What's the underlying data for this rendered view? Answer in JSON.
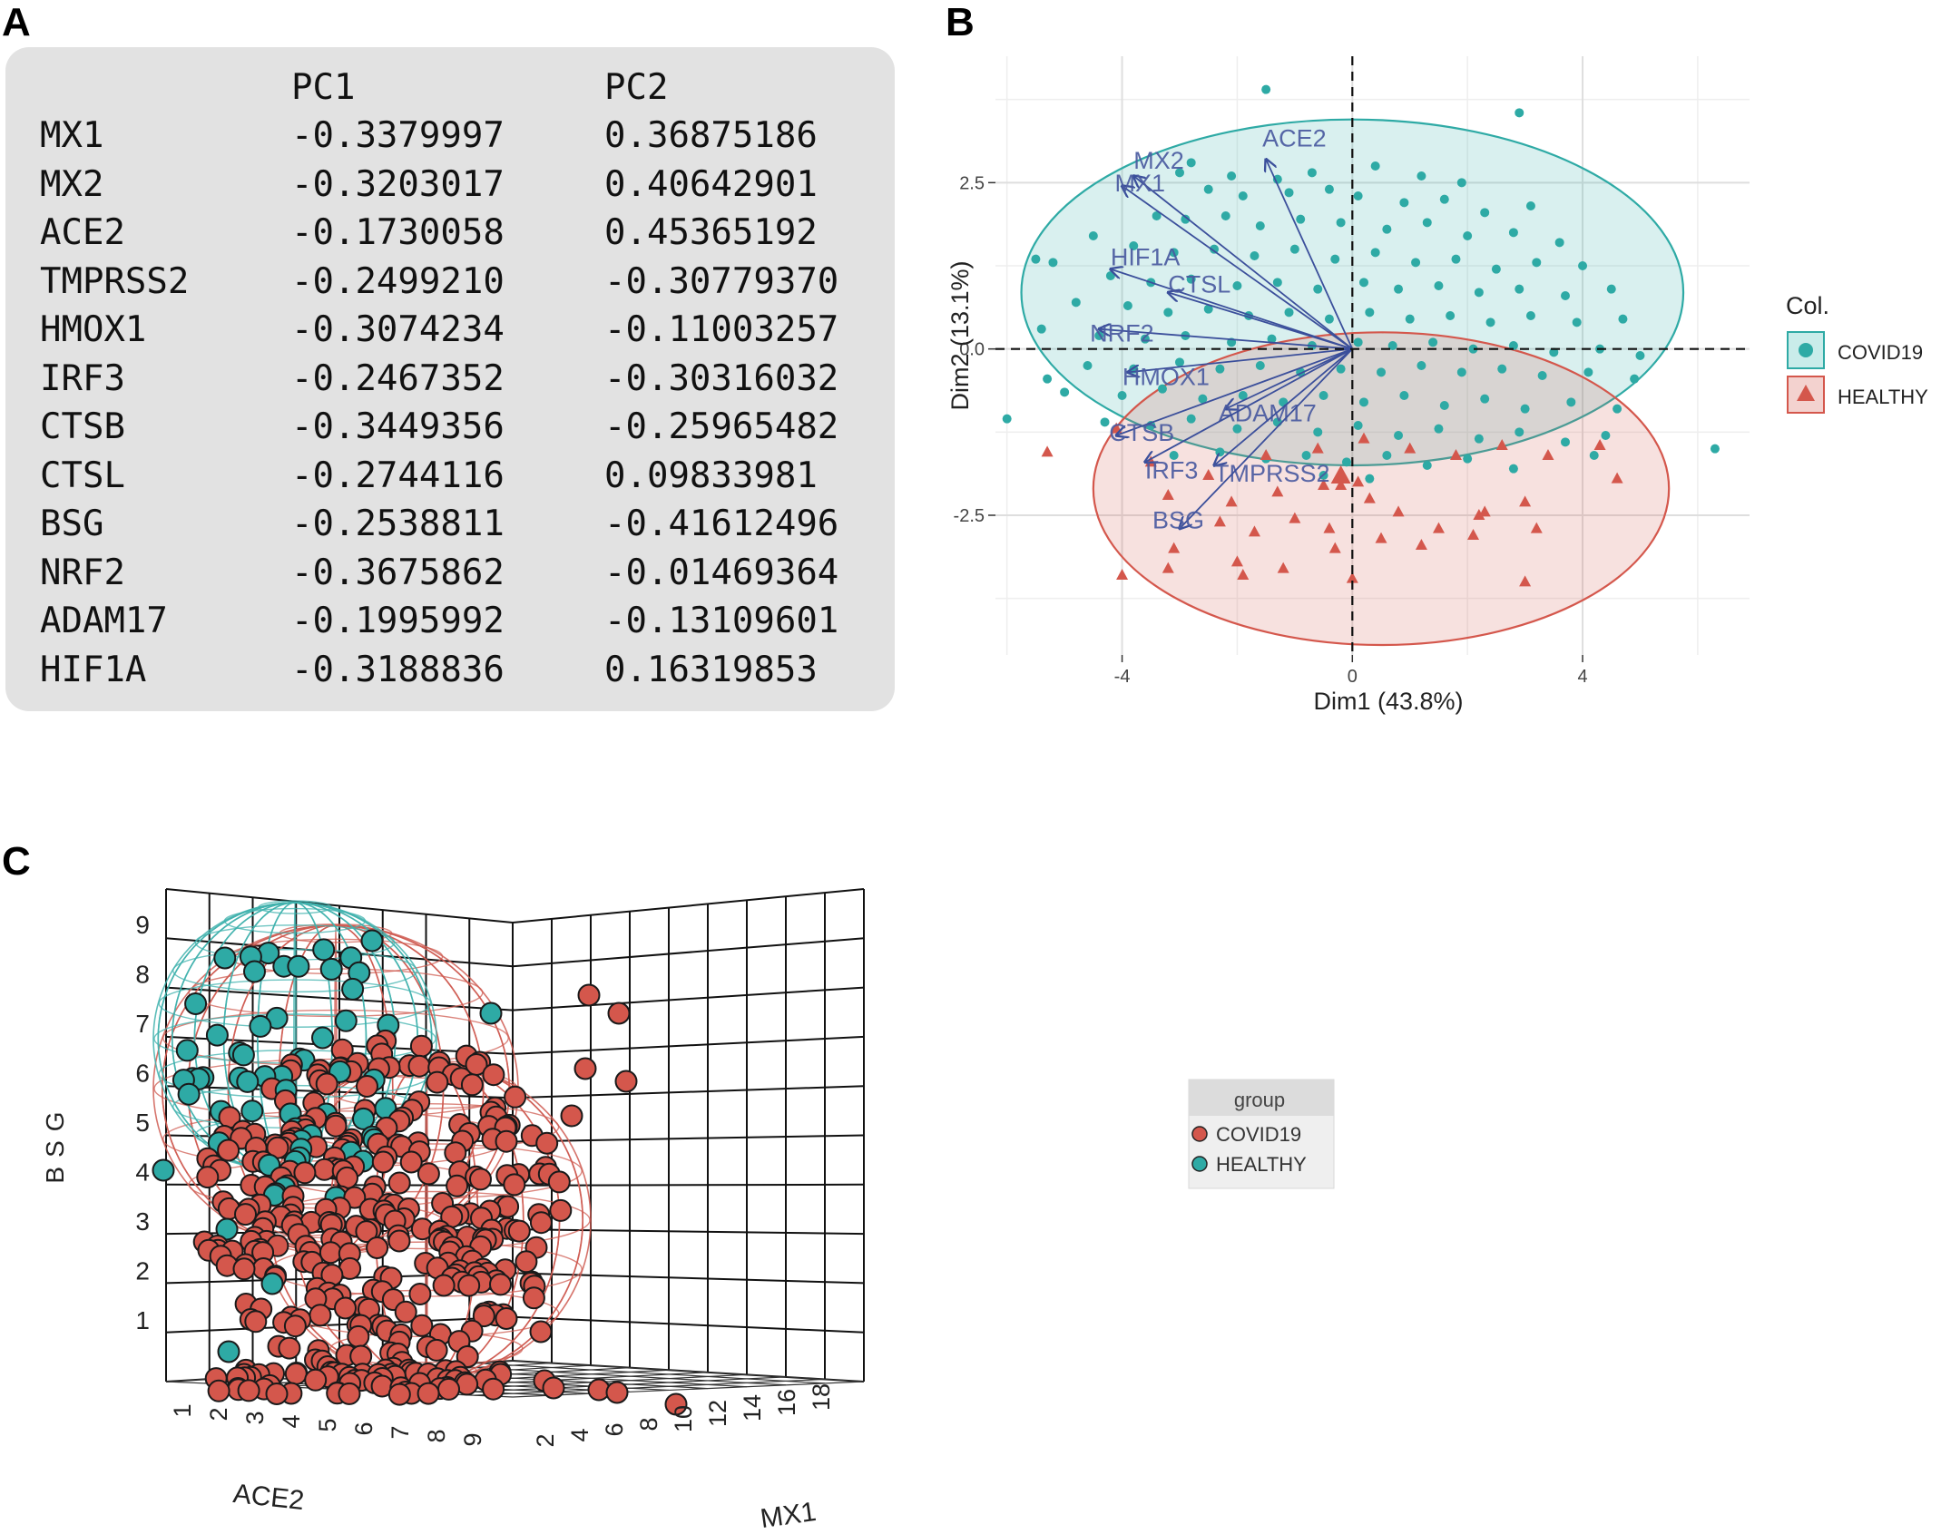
{
  "panels": {
    "a": "A",
    "b": "B",
    "c": "C"
  },
  "loadings_table": {
    "columns": [
      "PC1",
      "PC2"
    ],
    "rows": [
      {
        "gene": "MX1",
        "pc1": "-0.3379997",
        "pc2": "0.36875186"
      },
      {
        "gene": "MX2",
        "pc1": "-0.3203017",
        "pc2": "0.40642901"
      },
      {
        "gene": "ACE2",
        "pc1": "-0.1730058",
        "pc2": "0.45365192"
      },
      {
        "gene": "TMPRSS2",
        "pc1": "-0.2499210",
        "pc2": "-0.30779370"
      },
      {
        "gene": "HMOX1",
        "pc1": "-0.3074234",
        "pc2": "-0.11003257"
      },
      {
        "gene": "IRF3",
        "pc1": "-0.2467352",
        "pc2": "-0.30316032"
      },
      {
        "gene": "CTSB",
        "pc1": "-0.3449356",
        "pc2": "-0.25965482"
      },
      {
        "gene": "CTSL",
        "pc1": "-0.2744116",
        "pc2": "0.09833981"
      },
      {
        "gene": "BSG",
        "pc1": "-0.2538811",
        "pc2": "-0.41612496"
      },
      {
        "gene": "NRF2",
        "pc1": "-0.3675862",
        "pc2": "-0.01469364"
      },
      {
        "gene": "ADAM17",
        "pc1": "-0.1995992",
        "pc2": "-0.13109601"
      },
      {
        "gene": "HIF1A",
        "pc1": "-0.3188836",
        "pc2": "0.16319853"
      }
    ]
  },
  "chart_data": [
    {
      "type": "scatter",
      "title": "",
      "xlabel": "Dim1 (43.8%)",
      "ylabel": "Dim2 (13.1%)",
      "xlim": [
        -6.2,
        6.9
      ],
      "ylim": [
        -4.6,
        4.4
      ],
      "xticks": [
        -4,
        0,
        4
      ],
      "xtick_labels": [
        "-4",
        "0",
        "4"
      ],
      "yticks": [
        -2.5,
        0,
        2.5
      ],
      "ytick_labels": [
        "-2.5",
        "0.0",
        "2.5"
      ],
      "grid": true,
      "legend": {
        "title": "Col.",
        "position": "right",
        "entries": [
          "COVID19",
          "HEALTHY"
        ]
      },
      "colors": {
        "COVID19": "#2eaaa5",
        "HEALTHY": "#d4574c",
        "arrows": "#3b4f9b"
      },
      "arrows": [
        {
          "label": "MX2",
          "x": -3.8,
          "y": 2.6
        },
        {
          "label": "MX1",
          "x": -4.0,
          "y": 2.45
        },
        {
          "label": "ACE2",
          "x": -1.5,
          "y": 2.85
        },
        {
          "label": "HIF1A",
          "x": -4.2,
          "y": 1.2
        },
        {
          "label": "CTSL",
          "x": -3.2,
          "y": 0.85
        },
        {
          "label": "NRF2",
          "x": -4.4,
          "y": 0.3
        },
        {
          "label": "HMOX1",
          "x": -3.9,
          "y": -0.35
        },
        {
          "label": "ADAM17",
          "x": -2.2,
          "y": -0.9
        },
        {
          "label": "CTSB",
          "x": -4.1,
          "y": -1.3
        },
        {
          "label": "IRF3",
          "x": -3.6,
          "y": -1.7
        },
        {
          "label": "TMPRSS2",
          "x": -2.4,
          "y": -1.75
        },
        {
          "label": "BSG",
          "x": -3.0,
          "y": -2.7
        }
      ],
      "ellipses": [
        {
          "group": "COVID19",
          "cx": 0.0,
          "cy": 0.85,
          "rx": 5.75,
          "ry": 2.6
        },
        {
          "group": "HEALTHY",
          "cx": 0.5,
          "cy": -2.1,
          "rx": 5.0,
          "ry": 2.35
        }
      ],
      "series": [
        {
          "name": "COVID19",
          "marker": "circle",
          "points": [
            [
              -1.5,
              3.9
            ],
            [
              2.9,
              3.55
            ],
            [
              -3.0,
              2.65
            ],
            [
              -2.8,
              2.8
            ],
            [
              -2.1,
              2.6
            ],
            [
              -1.3,
              2.55
            ],
            [
              -0.7,
              2.65
            ],
            [
              0.4,
              2.75
            ],
            [
              1.2,
              2.6
            ],
            [
              1.9,
              2.5
            ],
            [
              -2.5,
              2.4
            ],
            [
              -1.9,
              2.3
            ],
            [
              -1.1,
              2.35
            ],
            [
              -0.4,
              2.4
            ],
            [
              0.1,
              2.3
            ],
            [
              0.9,
              2.2
            ],
            [
              1.6,
              2.25
            ],
            [
              2.3,
              2.05
            ],
            [
              3.1,
              2.15
            ],
            [
              -3.4,
              2.0
            ],
            [
              -2.9,
              1.95
            ],
            [
              -2.2,
              2.0
            ],
            [
              -1.6,
              1.85
            ],
            [
              -0.9,
              1.95
            ],
            [
              -0.2,
              1.9
            ],
            [
              0.6,
              1.8
            ],
            [
              1.3,
              1.9
            ],
            [
              2.0,
              1.7
            ],
            [
              2.8,
              1.75
            ],
            [
              3.6,
              1.6
            ],
            [
              -4.5,
              1.7
            ],
            [
              -3.8,
              1.55
            ],
            [
              -3.1,
              1.45
            ],
            [
              -2.4,
              1.5
            ],
            [
              -1.7,
              1.4
            ],
            [
              -1.0,
              1.5
            ],
            [
              -0.3,
              1.35
            ],
            [
              0.4,
              1.45
            ],
            [
              1.1,
              1.3
            ],
            [
              1.8,
              1.35
            ],
            [
              2.5,
              1.2
            ],
            [
              3.2,
              1.3
            ],
            [
              4.0,
              1.25
            ],
            [
              -5.2,
              1.3
            ],
            [
              -4.2,
              1.1
            ],
            [
              -3.5,
              1.0
            ],
            [
              -2.8,
              1.05
            ],
            [
              -2.0,
              0.95
            ],
            [
              -1.3,
              1.0
            ],
            [
              -0.6,
              0.9
            ],
            [
              0.2,
              1.0
            ],
            [
              0.8,
              0.9
            ],
            [
              1.5,
              0.95
            ],
            [
              2.2,
              0.85
            ],
            [
              2.9,
              0.9
            ],
            [
              3.7,
              0.8
            ],
            [
              4.5,
              0.9
            ],
            [
              -4.8,
              0.7
            ],
            [
              -3.9,
              0.65
            ],
            [
              -3.2,
              0.55
            ],
            [
              -2.5,
              0.6
            ],
            [
              -1.8,
              0.5
            ],
            [
              -1.1,
              0.55
            ],
            [
              -0.4,
              0.45
            ],
            [
              0.3,
              0.55
            ],
            [
              1.0,
              0.45
            ],
            [
              1.7,
              0.5
            ],
            [
              2.4,
              0.4
            ],
            [
              3.1,
              0.5
            ],
            [
              3.9,
              0.4
            ],
            [
              4.7,
              0.45
            ],
            [
              -5.4,
              0.3
            ],
            [
              -4.4,
              0.2
            ],
            [
              -3.6,
              0.15
            ],
            [
              -2.9,
              0.2
            ],
            [
              -2.1,
              0.1
            ],
            [
              -1.4,
              0.15
            ],
            [
              -0.7,
              0.05
            ],
            [
              0.1,
              0.1
            ],
            [
              0.7,
              0.05
            ],
            [
              1.4,
              0.1
            ],
            [
              2.1,
              0.0
            ],
            [
              2.8,
              0.05
            ],
            [
              3.5,
              -0.05
            ],
            [
              4.3,
              0.0
            ],
            [
              5.0,
              -0.1
            ],
            [
              -4.6,
              -0.25
            ],
            [
              -3.8,
              -0.3
            ],
            [
              -3.0,
              -0.2
            ],
            [
              -2.3,
              -0.3
            ],
            [
              -1.6,
              -0.25
            ],
            [
              -0.9,
              -0.35
            ],
            [
              -0.2,
              -0.3
            ],
            [
              0.5,
              -0.35
            ],
            [
              1.2,
              -0.25
            ],
            [
              1.9,
              -0.35
            ],
            [
              2.6,
              -0.3
            ],
            [
              3.3,
              -0.4
            ],
            [
              4.1,
              -0.35
            ],
            [
              4.9,
              -0.45
            ],
            [
              -5.0,
              -0.65
            ],
            [
              -4.0,
              -0.7
            ],
            [
              -3.3,
              -0.6
            ],
            [
              -2.6,
              -0.75
            ],
            [
              -1.9,
              -0.7
            ],
            [
              -1.2,
              -0.8
            ],
            [
              -0.5,
              -0.7
            ],
            [
              0.2,
              -0.8
            ],
            [
              0.9,
              -0.7
            ],
            [
              1.6,
              -0.85
            ],
            [
              2.3,
              -0.75
            ],
            [
              3.0,
              -0.9
            ],
            [
              3.8,
              -0.8
            ],
            [
              4.6,
              -0.9
            ],
            [
              -4.3,
              -1.1
            ],
            [
              -3.5,
              -1.15
            ],
            [
              -2.8,
              -1.05
            ],
            [
              -2.0,
              -1.2
            ],
            [
              -1.3,
              -1.1
            ],
            [
              -0.6,
              -1.25
            ],
            [
              0.1,
              -1.15
            ],
            [
              0.8,
              -1.3
            ],
            [
              1.5,
              -1.2
            ],
            [
              2.2,
              -1.35
            ],
            [
              2.9,
              -1.25
            ],
            [
              3.7,
              -1.4
            ],
            [
              4.4,
              -1.3
            ],
            [
              -3.1,
              -1.6
            ],
            [
              -2.3,
              -1.55
            ],
            [
              -1.5,
              -1.65
            ],
            [
              -0.8,
              -1.6
            ],
            [
              -0.1,
              -1.7
            ],
            [
              0.6,
              -1.6
            ],
            [
              1.3,
              -1.75
            ],
            [
              2.0,
              -1.65
            ],
            [
              2.8,
              -1.8
            ],
            [
              4.2,
              -1.6
            ],
            [
              6.3,
              -1.5
            ],
            [
              -6.0,
              -1.05
            ],
            [
              -5.5,
              1.35
            ],
            [
              -5.3,
              -0.45
            ],
            [
              -0.5,
              -1.9
            ],
            [
              0.3,
              -1.95
            ]
          ]
        },
        {
          "name": "HEALTHY",
          "marker": "triangle",
          "points": [
            [
              -5.3,
              -1.55
            ],
            [
              -4.1,
              -1.2
            ],
            [
              -3.5,
              -1.7
            ],
            [
              -2.5,
              -1.9
            ],
            [
              -1.5,
              -1.6
            ],
            [
              -0.6,
              -1.5
            ],
            [
              0.2,
              -1.35
            ],
            [
              1.0,
              -1.5
            ],
            [
              1.8,
              -1.6
            ],
            [
              2.6,
              -1.45
            ],
            [
              3.4,
              -1.6
            ],
            [
              4.3,
              -1.45
            ],
            [
              4.6,
              -1.95
            ],
            [
              -3.2,
              -2.2
            ],
            [
              -2.1,
              -2.3
            ],
            [
              -1.3,
              -2.15
            ],
            [
              -0.5,
              -2.05
            ],
            [
              -0.2,
              -2.05
            ],
            [
              0.3,
              -2.25
            ],
            [
              0.8,
              -2.45
            ],
            [
              1.5,
              -2.7
            ],
            [
              2.2,
              -2.5
            ],
            [
              3.0,
              -2.3
            ],
            [
              -2.3,
              -2.6
            ],
            [
              -1.7,
              -2.75
            ],
            [
              -1.0,
              -2.55
            ],
            [
              -0.4,
              -2.7
            ],
            [
              0.5,
              -2.85
            ],
            [
              1.2,
              -2.95
            ],
            [
              2.1,
              -2.8
            ],
            [
              3.2,
              -2.7
            ],
            [
              -3.1,
              -3.0
            ],
            [
              -2.0,
              -3.2
            ],
            [
              -1.2,
              -3.3
            ],
            [
              -0.3,
              -3.0
            ],
            [
              0.0,
              -3.45
            ],
            [
              -4.0,
              -3.4
            ],
            [
              -3.2,
              -3.3
            ],
            [
              -1.9,
              -3.4
            ],
            [
              3.0,
              -3.5
            ],
            [
              2.3,
              -2.45
            ],
            [
              0.1,
              -2.0
            ]
          ]
        }
      ]
    },
    {
      "type": "scatter",
      "title": "",
      "xlabel": "ACE2",
      "ylabel": "BSG",
      "zlabel": "MX1",
      "projection": "3d",
      "xticks": [
        "1",
        "2",
        "3",
        "4",
        "5",
        "6",
        "7",
        "8",
        "9"
      ],
      "yticks": [
        "1",
        "2",
        "3",
        "4",
        "5",
        "6",
        "7",
        "8",
        "9"
      ],
      "zticks": [
        "2",
        "4",
        "6",
        "8",
        "10",
        "12",
        "14",
        "16",
        "18"
      ],
      "grid": true,
      "legend": {
        "title": "group",
        "position": "right",
        "entries": [
          "COVID19",
          "HEALTHY"
        ]
      },
      "colors": {
        "COVID19": "#d4574c",
        "HEALTHY": "#2eaaa5"
      },
      "series": [
        {
          "name": "COVID19",
          "count_approx": 420
        },
        {
          "name": "HEALTHY",
          "count_approx": 60
        }
      ]
    }
  ]
}
